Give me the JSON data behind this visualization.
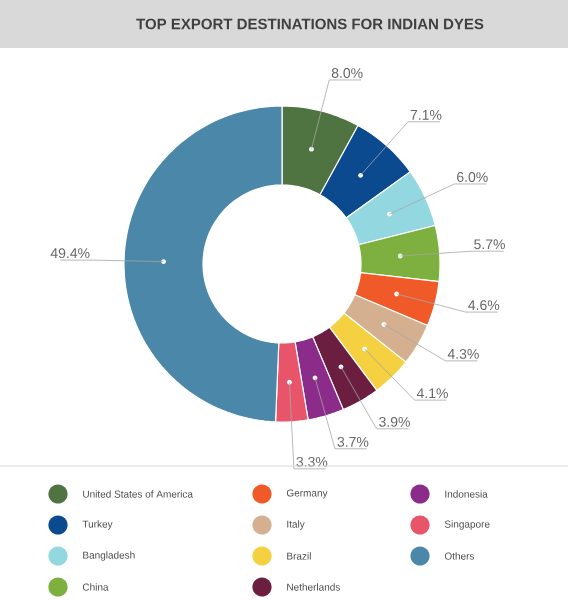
{
  "chart_data": {
    "type": "donut",
    "title": "TOP EXPORT DESTINATIONS FOR INDIAN DYES",
    "categories": [
      "United States of America",
      "Turkey",
      "Bangladesh",
      "China",
      "Germany",
      "Italy",
      "Brazil",
      "Netherlands",
      "Indonesia",
      "Singapore",
      "Others"
    ],
    "values": [
      8.0,
      7.1,
      6.0,
      5.7,
      4.6,
      4.3,
      4.1,
      3.9,
      3.7,
      3.3,
      49.4
    ],
    "value_labels": [
      "8.0%",
      "7.1%",
      "6.0%",
      "5.7%",
      "4.6%",
      "4.3%",
      "4.1%",
      "3.9%",
      "3.7%",
      "3.3%",
      "49.4%"
    ],
    "colors": [
      "#4f7442",
      "#0b4a8f",
      "#93d7e1",
      "#7db03f",
      "#f05a28",
      "#d4b090",
      "#f5d040",
      "#6b1e3f",
      "#8b2b8a",
      "#e8556a",
      "#4a87a8"
    ],
    "legend": "bottom"
  }
}
